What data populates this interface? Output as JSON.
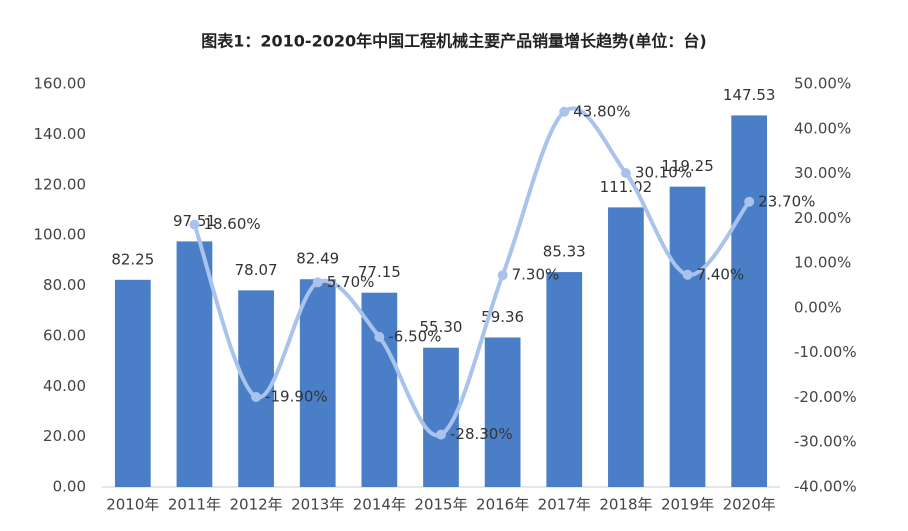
{
  "chart_data": {
    "type": "bar",
    "title": "图表1：2010-2020年中国工程机械主要产品销量增长趋势(单位：台)",
    "categories": [
      "2010年",
      "2011年",
      "2012年",
      "2013年",
      "2014年",
      "2015年",
      "2016年",
      "2017年",
      "2018年",
      "2019年",
      "2020年"
    ],
    "series": [
      {
        "type": "bar",
        "color": "#4a7fc8",
        "values": [
          82.25,
          97.51,
          78.07,
          82.49,
          77.15,
          55.3,
          59.36,
          85.33,
          111.02,
          119.25,
          147.53
        ],
        "value_labels": [
          "82.25",
          "97.51",
          "78.07",
          "82.49",
          "77.15",
          "55.30",
          "59.36",
          "85.33",
          "111.02",
          "119.25",
          "147.53"
        ]
      },
      {
        "type": "line",
        "axis": "y2",
        "color": "#a9c3ec",
        "values": [
          null,
          18.6,
          -19.9,
          5.7,
          -6.5,
          -28.3,
          7.3,
          43.8,
          30.1,
          7.4,
          23.7
        ],
        "value_labels": [
          null,
          "18.60%",
          "-19.90%",
          "5.70%",
          "-6.50%",
          "-28.30%",
          "7.30%",
          "43.80%",
          "30.10%",
          "7.40%",
          "23.70%"
        ]
      }
    ],
    "ylim": [
      0,
      160
    ],
    "yticks": [
      {
        "value": 0,
        "label": "0.00"
      },
      {
        "value": 20,
        "label": "20.00"
      },
      {
        "value": 40,
        "label": "40.00"
      },
      {
        "value": 60,
        "label": "60.00"
      },
      {
        "value": 80,
        "label": "80.00"
      },
      {
        "value": 100,
        "label": "100.00"
      },
      {
        "value": 120,
        "label": "120.00"
      },
      {
        "value": 140,
        "label": "140.00"
      },
      {
        "value": 160,
        "label": "160.00"
      }
    ],
    "y2lim": [
      -40,
      50
    ],
    "y2ticks": [
      {
        "value": -40,
        "label": "-40.00%"
      },
      {
        "value": -30,
        "label": "-30.00%"
      },
      {
        "value": -20,
        "label": "-20.00%"
      },
      {
        "value": -10,
        "label": "-10.00%"
      },
      {
        "value": 0,
        "label": "0.00%"
      },
      {
        "value": 10,
        "label": "10.00%"
      },
      {
        "value": 20,
        "label": "20.00%"
      },
      {
        "value": 30,
        "label": "30.00%"
      },
      {
        "value": 40,
        "label": "40.00%"
      },
      {
        "value": 50,
        "label": "50.00%"
      }
    ]
  }
}
